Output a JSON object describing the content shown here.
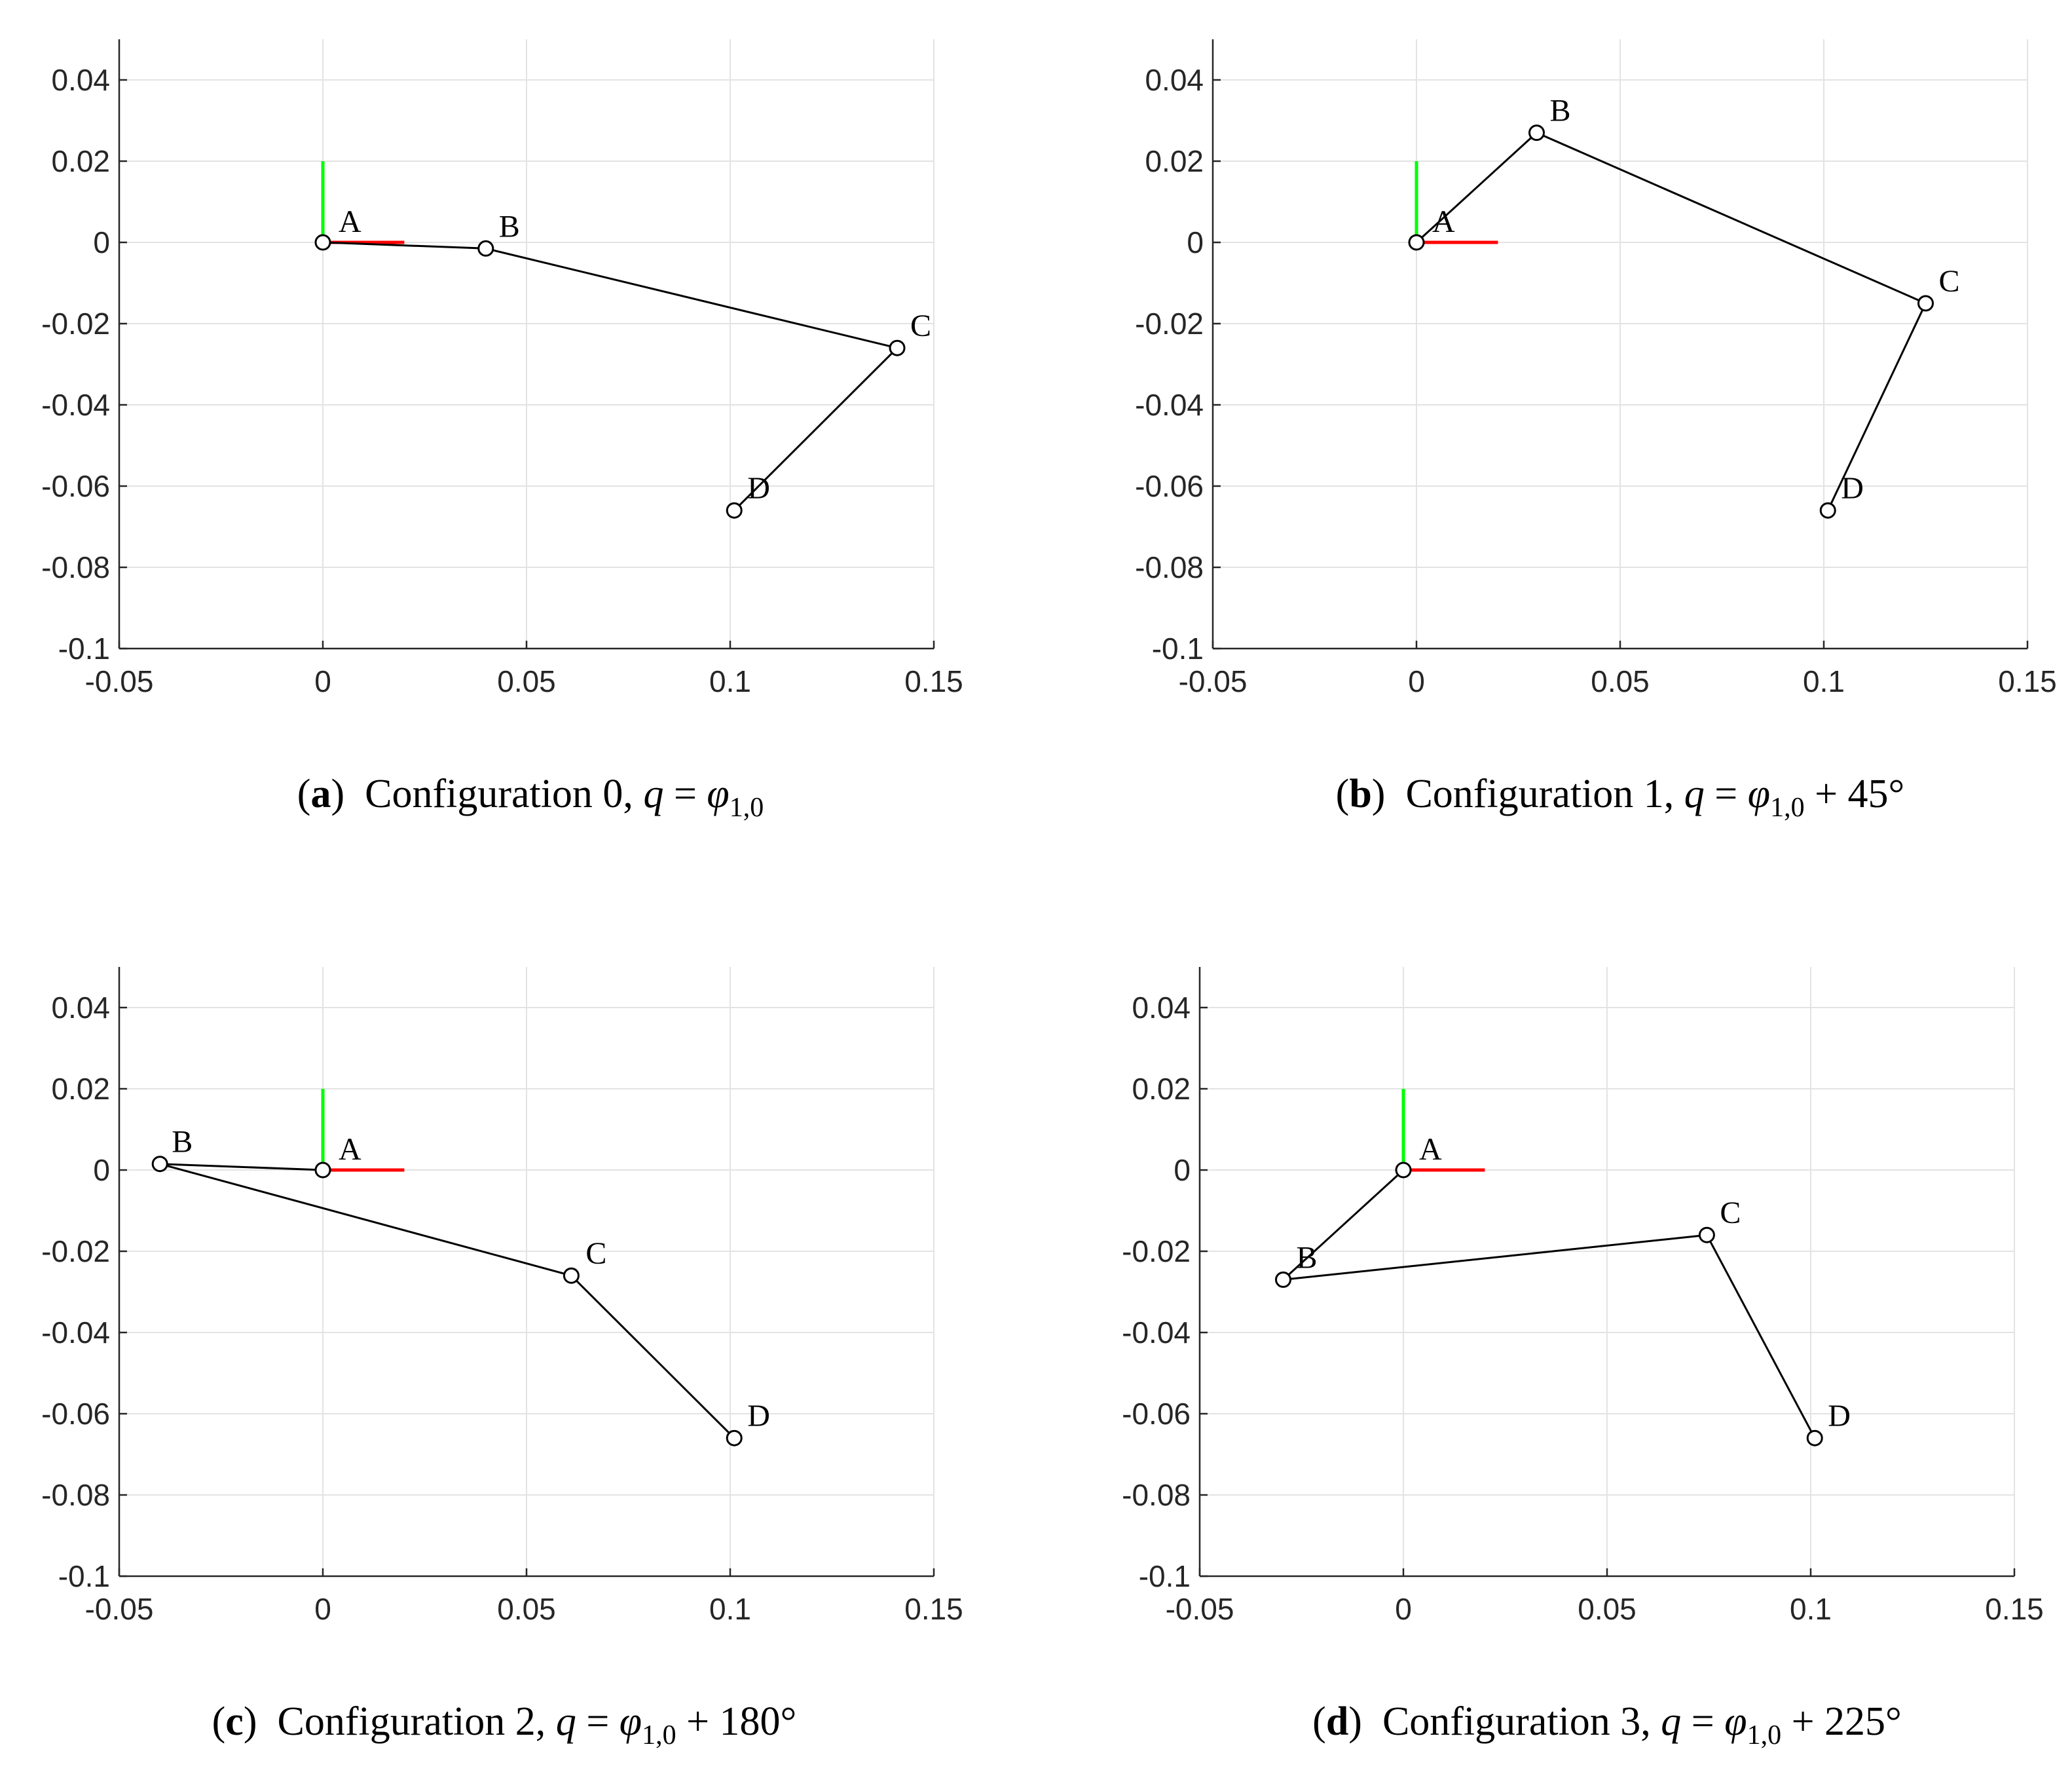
{
  "chart_data": [
    {
      "type": "line",
      "subplot": "a",
      "caption": {
        "label": "a",
        "text": "Configuration 0,",
        "q": "q",
        "equals": "=",
        "phi": "φ",
        "phi_sub": "1,0",
        "suffix": ""
      },
      "xlim": [
        -0.05,
        0.15
      ],
      "ylim": [
        -0.1,
        0.05
      ],
      "xticks": [
        "-0.05",
        "0",
        "0.05",
        "0.1",
        "0.15"
      ],
      "yticks": [
        "0.04",
        "0.02",
        "0",
        "-0.02",
        "-0.04",
        "-0.06",
        "-0.08",
        "-0.1"
      ],
      "grid": true,
      "axes_frame": {
        "x_axis": [
          0,
          0.02
        ],
        "y_axis": [
          0,
          0.02
        ],
        "x_color": "#ff0000",
        "y_color": "#00ff00"
      },
      "link_color": "#000000",
      "points": [
        {
          "label": "A",
          "x": 0,
          "y": 0
        },
        {
          "label": "B",
          "x": 0.04,
          "y": -0.0015
        },
        {
          "label": "C",
          "x": 0.141,
          "y": -0.026
        },
        {
          "label": "D",
          "x": 0.101,
          "y": -0.066
        }
      ]
    },
    {
      "type": "line",
      "subplot": "b",
      "caption": {
        "label": "b",
        "text": "Configuration 1,",
        "q": "q",
        "equals": "=",
        "phi": "φ",
        "phi_sub": "1,0",
        "suffix": "+ 45°"
      },
      "xlim": [
        -0.05,
        0.15
      ],
      "ylim": [
        -0.1,
        0.05
      ],
      "xticks": [
        "-0.05",
        "0",
        "0.05",
        "0.1",
        "0.15"
      ],
      "yticks": [
        "0.04",
        "0.02",
        "0",
        "-0.02",
        "-0.04",
        "-0.06",
        "-0.08",
        "-0.1"
      ],
      "grid": true,
      "axes_frame": {
        "x_axis": [
          0,
          0.02
        ],
        "y_axis": [
          0,
          0.02
        ],
        "x_color": "#ff0000",
        "y_color": "#00ff00"
      },
      "link_color": "#000000",
      "points": [
        {
          "label": "A",
          "x": 0,
          "y": 0
        },
        {
          "label": "B",
          "x": 0.0295,
          "y": 0.027
        },
        {
          "label": "C",
          "x": 0.125,
          "y": -0.015
        },
        {
          "label": "D",
          "x": 0.101,
          "y": -0.066
        }
      ]
    },
    {
      "type": "line",
      "subplot": "c",
      "caption": {
        "label": "c",
        "text": "Configuration 2,",
        "q": "q",
        "equals": "=",
        "phi": "φ",
        "phi_sub": "1,0",
        "suffix": "+ 180°"
      },
      "xlim": [
        -0.05,
        0.15
      ],
      "ylim": [
        -0.1,
        0.05
      ],
      "xticks": [
        "-0.05",
        "0",
        "0.05",
        "0.1",
        "0.15"
      ],
      "yticks": [
        "0.04",
        "0.02",
        "0",
        "-0.02",
        "-0.04",
        "-0.06",
        "-0.08",
        "-0.1"
      ],
      "grid": true,
      "axes_frame": {
        "x_axis": [
          0,
          0.02
        ],
        "y_axis": [
          0,
          0.02
        ],
        "x_color": "#ff0000",
        "y_color": "#00ff00"
      },
      "link_color": "#000000",
      "points": [
        {
          "label": "A",
          "x": 0,
          "y": 0
        },
        {
          "label": "B",
          "x": -0.04,
          "y": 0.0015
        },
        {
          "label": "C",
          "x": 0.061,
          "y": -0.026
        },
        {
          "label": "D",
          "x": 0.101,
          "y": -0.066
        }
      ]
    },
    {
      "type": "line",
      "subplot": "d",
      "caption": {
        "label": "d",
        "text": "Configuration 3,",
        "q": "q",
        "equals": "=",
        "phi": "φ",
        "phi_sub": "1,0",
        "suffix": "+ 225°"
      },
      "xlim": [
        -0.05,
        0.15
      ],
      "ylim": [
        -0.1,
        0.05
      ],
      "xticks": [
        "-0.05",
        "0",
        "0.05",
        "0.1",
        "0.15"
      ],
      "yticks": [
        "0.04",
        "0.02",
        "0",
        "-0.02",
        "-0.04",
        "-0.06",
        "-0.08",
        "-0.1"
      ],
      "grid": true,
      "axes_frame": {
        "x_axis": [
          0,
          0.02
        ],
        "y_axis": [
          0,
          0.02
        ],
        "x_color": "#ff0000",
        "y_color": "#00ff00"
      },
      "link_color": "#000000",
      "points": [
        {
          "label": "A",
          "x": 0,
          "y": 0
        },
        {
          "label": "B",
          "x": -0.0295,
          "y": -0.027
        },
        {
          "label": "C",
          "x": 0.0745,
          "y": -0.016
        },
        {
          "label": "D",
          "x": 0.101,
          "y": -0.066
        }
      ]
    }
  ]
}
